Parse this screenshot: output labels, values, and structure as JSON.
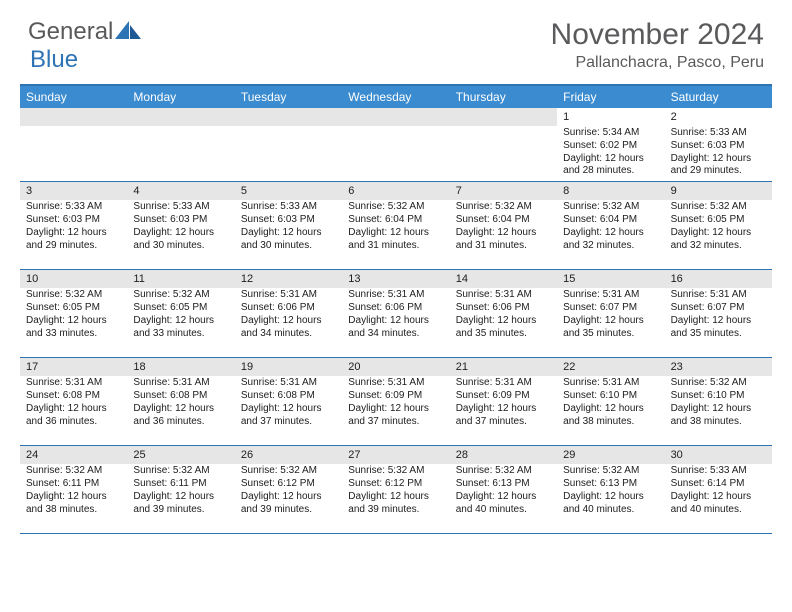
{
  "logo": {
    "word1": "General",
    "word2": "Blue"
  },
  "title": "November 2024",
  "location": "Pallanchacra, Pasco, Peru",
  "colors": {
    "header_bg": "#3b8bd0",
    "border": "#2e74b5",
    "text": "#202020",
    "title_text": "#5a5a5c",
    "shaded": "#e6e6e6",
    "bg": "#ffffff"
  },
  "day_names": [
    "Sunday",
    "Monday",
    "Tuesday",
    "Wednesday",
    "Thursday",
    "Friday",
    "Saturday"
  ],
  "weeks": [
    [
      {
        "day": "",
        "sunrise": "",
        "sunset": "",
        "daylight1": "",
        "daylight2": "",
        "shaded": false
      },
      {
        "day": "",
        "sunrise": "",
        "sunset": "",
        "daylight1": "",
        "daylight2": "",
        "shaded": false
      },
      {
        "day": "",
        "sunrise": "",
        "sunset": "",
        "daylight1": "",
        "daylight2": "",
        "shaded": false
      },
      {
        "day": "",
        "sunrise": "",
        "sunset": "",
        "daylight1": "",
        "daylight2": "",
        "shaded": false
      },
      {
        "day": "",
        "sunrise": "",
        "sunset": "",
        "daylight1": "",
        "daylight2": "",
        "shaded": false
      },
      {
        "day": "1",
        "sunrise": "Sunrise: 5:34 AM",
        "sunset": "Sunset: 6:02 PM",
        "daylight1": "Daylight: 12 hours",
        "daylight2": "and 28 minutes.",
        "shaded": false
      },
      {
        "day": "2",
        "sunrise": "Sunrise: 5:33 AM",
        "sunset": "Sunset: 6:03 PM",
        "daylight1": "Daylight: 12 hours",
        "daylight2": "and 29 minutes.",
        "shaded": false
      }
    ],
    [
      {
        "day": "3",
        "sunrise": "Sunrise: 5:33 AM",
        "sunset": "Sunset: 6:03 PM",
        "daylight1": "Daylight: 12 hours",
        "daylight2": "and 29 minutes.",
        "shaded": true
      },
      {
        "day": "4",
        "sunrise": "Sunrise: 5:33 AM",
        "sunset": "Sunset: 6:03 PM",
        "daylight1": "Daylight: 12 hours",
        "daylight2": "and 30 minutes.",
        "shaded": true
      },
      {
        "day": "5",
        "sunrise": "Sunrise: 5:33 AM",
        "sunset": "Sunset: 6:03 PM",
        "daylight1": "Daylight: 12 hours",
        "daylight2": "and 30 minutes.",
        "shaded": true
      },
      {
        "day": "6",
        "sunrise": "Sunrise: 5:32 AM",
        "sunset": "Sunset: 6:04 PM",
        "daylight1": "Daylight: 12 hours",
        "daylight2": "and 31 minutes.",
        "shaded": true
      },
      {
        "day": "7",
        "sunrise": "Sunrise: 5:32 AM",
        "sunset": "Sunset: 6:04 PM",
        "daylight1": "Daylight: 12 hours",
        "daylight2": "and 31 minutes.",
        "shaded": true
      },
      {
        "day": "8",
        "sunrise": "Sunrise: 5:32 AM",
        "sunset": "Sunset: 6:04 PM",
        "daylight1": "Daylight: 12 hours",
        "daylight2": "and 32 minutes.",
        "shaded": true
      },
      {
        "day": "9",
        "sunrise": "Sunrise: 5:32 AM",
        "sunset": "Sunset: 6:05 PM",
        "daylight1": "Daylight: 12 hours",
        "daylight2": "and 32 minutes.",
        "shaded": true
      }
    ],
    [
      {
        "day": "10",
        "sunrise": "Sunrise: 5:32 AM",
        "sunset": "Sunset: 6:05 PM",
        "daylight1": "Daylight: 12 hours",
        "daylight2": "and 33 minutes.",
        "shaded": true
      },
      {
        "day": "11",
        "sunrise": "Sunrise: 5:32 AM",
        "sunset": "Sunset: 6:05 PM",
        "daylight1": "Daylight: 12 hours",
        "daylight2": "and 33 minutes.",
        "shaded": true
      },
      {
        "day": "12",
        "sunrise": "Sunrise: 5:31 AM",
        "sunset": "Sunset: 6:06 PM",
        "daylight1": "Daylight: 12 hours",
        "daylight2": "and 34 minutes.",
        "shaded": true
      },
      {
        "day": "13",
        "sunrise": "Sunrise: 5:31 AM",
        "sunset": "Sunset: 6:06 PM",
        "daylight1": "Daylight: 12 hours",
        "daylight2": "and 34 minutes.",
        "shaded": true
      },
      {
        "day": "14",
        "sunrise": "Sunrise: 5:31 AM",
        "sunset": "Sunset: 6:06 PM",
        "daylight1": "Daylight: 12 hours",
        "daylight2": "and 35 minutes.",
        "shaded": true
      },
      {
        "day": "15",
        "sunrise": "Sunrise: 5:31 AM",
        "sunset": "Sunset: 6:07 PM",
        "daylight1": "Daylight: 12 hours",
        "daylight2": "and 35 minutes.",
        "shaded": true
      },
      {
        "day": "16",
        "sunrise": "Sunrise: 5:31 AM",
        "sunset": "Sunset: 6:07 PM",
        "daylight1": "Daylight: 12 hours",
        "daylight2": "and 35 minutes.",
        "shaded": true
      }
    ],
    [
      {
        "day": "17",
        "sunrise": "Sunrise: 5:31 AM",
        "sunset": "Sunset: 6:08 PM",
        "daylight1": "Daylight: 12 hours",
        "daylight2": "and 36 minutes.",
        "shaded": true
      },
      {
        "day": "18",
        "sunrise": "Sunrise: 5:31 AM",
        "sunset": "Sunset: 6:08 PM",
        "daylight1": "Daylight: 12 hours",
        "daylight2": "and 36 minutes.",
        "shaded": true
      },
      {
        "day": "19",
        "sunrise": "Sunrise: 5:31 AM",
        "sunset": "Sunset: 6:08 PM",
        "daylight1": "Daylight: 12 hours",
        "daylight2": "and 37 minutes.",
        "shaded": true
      },
      {
        "day": "20",
        "sunrise": "Sunrise: 5:31 AM",
        "sunset": "Sunset: 6:09 PM",
        "daylight1": "Daylight: 12 hours",
        "daylight2": "and 37 minutes.",
        "shaded": true
      },
      {
        "day": "21",
        "sunrise": "Sunrise: 5:31 AM",
        "sunset": "Sunset: 6:09 PM",
        "daylight1": "Daylight: 12 hours",
        "daylight2": "and 37 minutes.",
        "shaded": true
      },
      {
        "day": "22",
        "sunrise": "Sunrise: 5:31 AM",
        "sunset": "Sunset: 6:10 PM",
        "daylight1": "Daylight: 12 hours",
        "daylight2": "and 38 minutes.",
        "shaded": true
      },
      {
        "day": "23",
        "sunrise": "Sunrise: 5:32 AM",
        "sunset": "Sunset: 6:10 PM",
        "daylight1": "Daylight: 12 hours",
        "daylight2": "and 38 minutes.",
        "shaded": true
      }
    ],
    [
      {
        "day": "24",
        "sunrise": "Sunrise: 5:32 AM",
        "sunset": "Sunset: 6:11 PM",
        "daylight1": "Daylight: 12 hours",
        "daylight2": "and 38 minutes.",
        "shaded": true
      },
      {
        "day": "25",
        "sunrise": "Sunrise: 5:32 AM",
        "sunset": "Sunset: 6:11 PM",
        "daylight1": "Daylight: 12 hours",
        "daylight2": "and 39 minutes.",
        "shaded": true
      },
      {
        "day": "26",
        "sunrise": "Sunrise: 5:32 AM",
        "sunset": "Sunset: 6:12 PM",
        "daylight1": "Daylight: 12 hours",
        "daylight2": "and 39 minutes.",
        "shaded": true
      },
      {
        "day": "27",
        "sunrise": "Sunrise: 5:32 AM",
        "sunset": "Sunset: 6:12 PM",
        "daylight1": "Daylight: 12 hours",
        "daylight2": "and 39 minutes.",
        "shaded": true
      },
      {
        "day": "28",
        "sunrise": "Sunrise: 5:32 AM",
        "sunset": "Sunset: 6:13 PM",
        "daylight1": "Daylight: 12 hours",
        "daylight2": "and 40 minutes.",
        "shaded": true
      },
      {
        "day": "29",
        "sunrise": "Sunrise: 5:32 AM",
        "sunset": "Sunset: 6:13 PM",
        "daylight1": "Daylight: 12 hours",
        "daylight2": "and 40 minutes.",
        "shaded": true
      },
      {
        "day": "30",
        "sunrise": "Sunrise: 5:33 AM",
        "sunset": "Sunset: 6:14 PM",
        "daylight1": "Daylight: 12 hours",
        "daylight2": "and 40 minutes.",
        "shaded": true
      }
    ]
  ]
}
